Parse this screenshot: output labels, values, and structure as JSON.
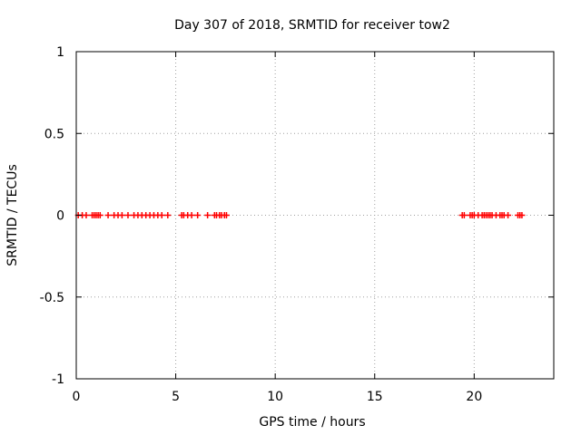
{
  "chart_data": {
    "type": "scatter",
    "title": "Day 307 of 2018, SRMTID for receiver tow2",
    "xlabel": "GPS time / hours",
    "ylabel": "SRMTID / TECUs",
    "xlim": [
      0,
      24
    ],
    "ylim": [
      -1,
      1
    ],
    "x_ticks": [
      0,
      5,
      10,
      15,
      20
    ],
    "y_ticks": [
      -1,
      -0.5,
      0,
      0.5,
      1
    ],
    "x_tick_labels": [
      "0",
      "5",
      "10",
      "15",
      "20"
    ],
    "y_tick_labels": [
      "-1",
      "-0.5",
      "0",
      "0.5",
      "1"
    ],
    "grid": true,
    "marker": "plus",
    "series": [
      {
        "color": "#ff0000",
        "x": [
          0.1,
          0.3,
          0.5,
          0.8,
          0.9,
          1.0,
          1.1,
          1.2,
          1.6,
          1.9,
          2.1,
          2.3,
          2.6,
          2.9,
          3.1,
          3.3,
          3.5,
          3.7,
          3.9,
          4.1,
          4.3,
          4.6,
          5.3,
          5.4,
          5.6,
          5.8,
          6.1,
          6.6,
          6.95,
          7.05,
          7.2,
          7.3,
          7.45,
          7.55,
          19.4,
          19.5,
          19.8,
          19.9,
          20.0,
          20.2,
          20.4,
          20.5,
          20.6,
          20.7,
          20.8,
          20.9,
          21.1,
          21.3,
          21.4,
          21.5,
          21.7,
          22.2,
          22.3,
          22.4
        ],
        "y": [
          0,
          0,
          0,
          0,
          0,
          0,
          0,
          0,
          0,
          0,
          0,
          0,
          0,
          0,
          0,
          0,
          0,
          0,
          0,
          0,
          0,
          0,
          0,
          0,
          0,
          0,
          0,
          0,
          0,
          0,
          0,
          0,
          0,
          0,
          0,
          0,
          0,
          0,
          0,
          0,
          0,
          0,
          0,
          0,
          0,
          0,
          0,
          0,
          0,
          0,
          0,
          0,
          0,
          0
        ]
      }
    ]
  }
}
